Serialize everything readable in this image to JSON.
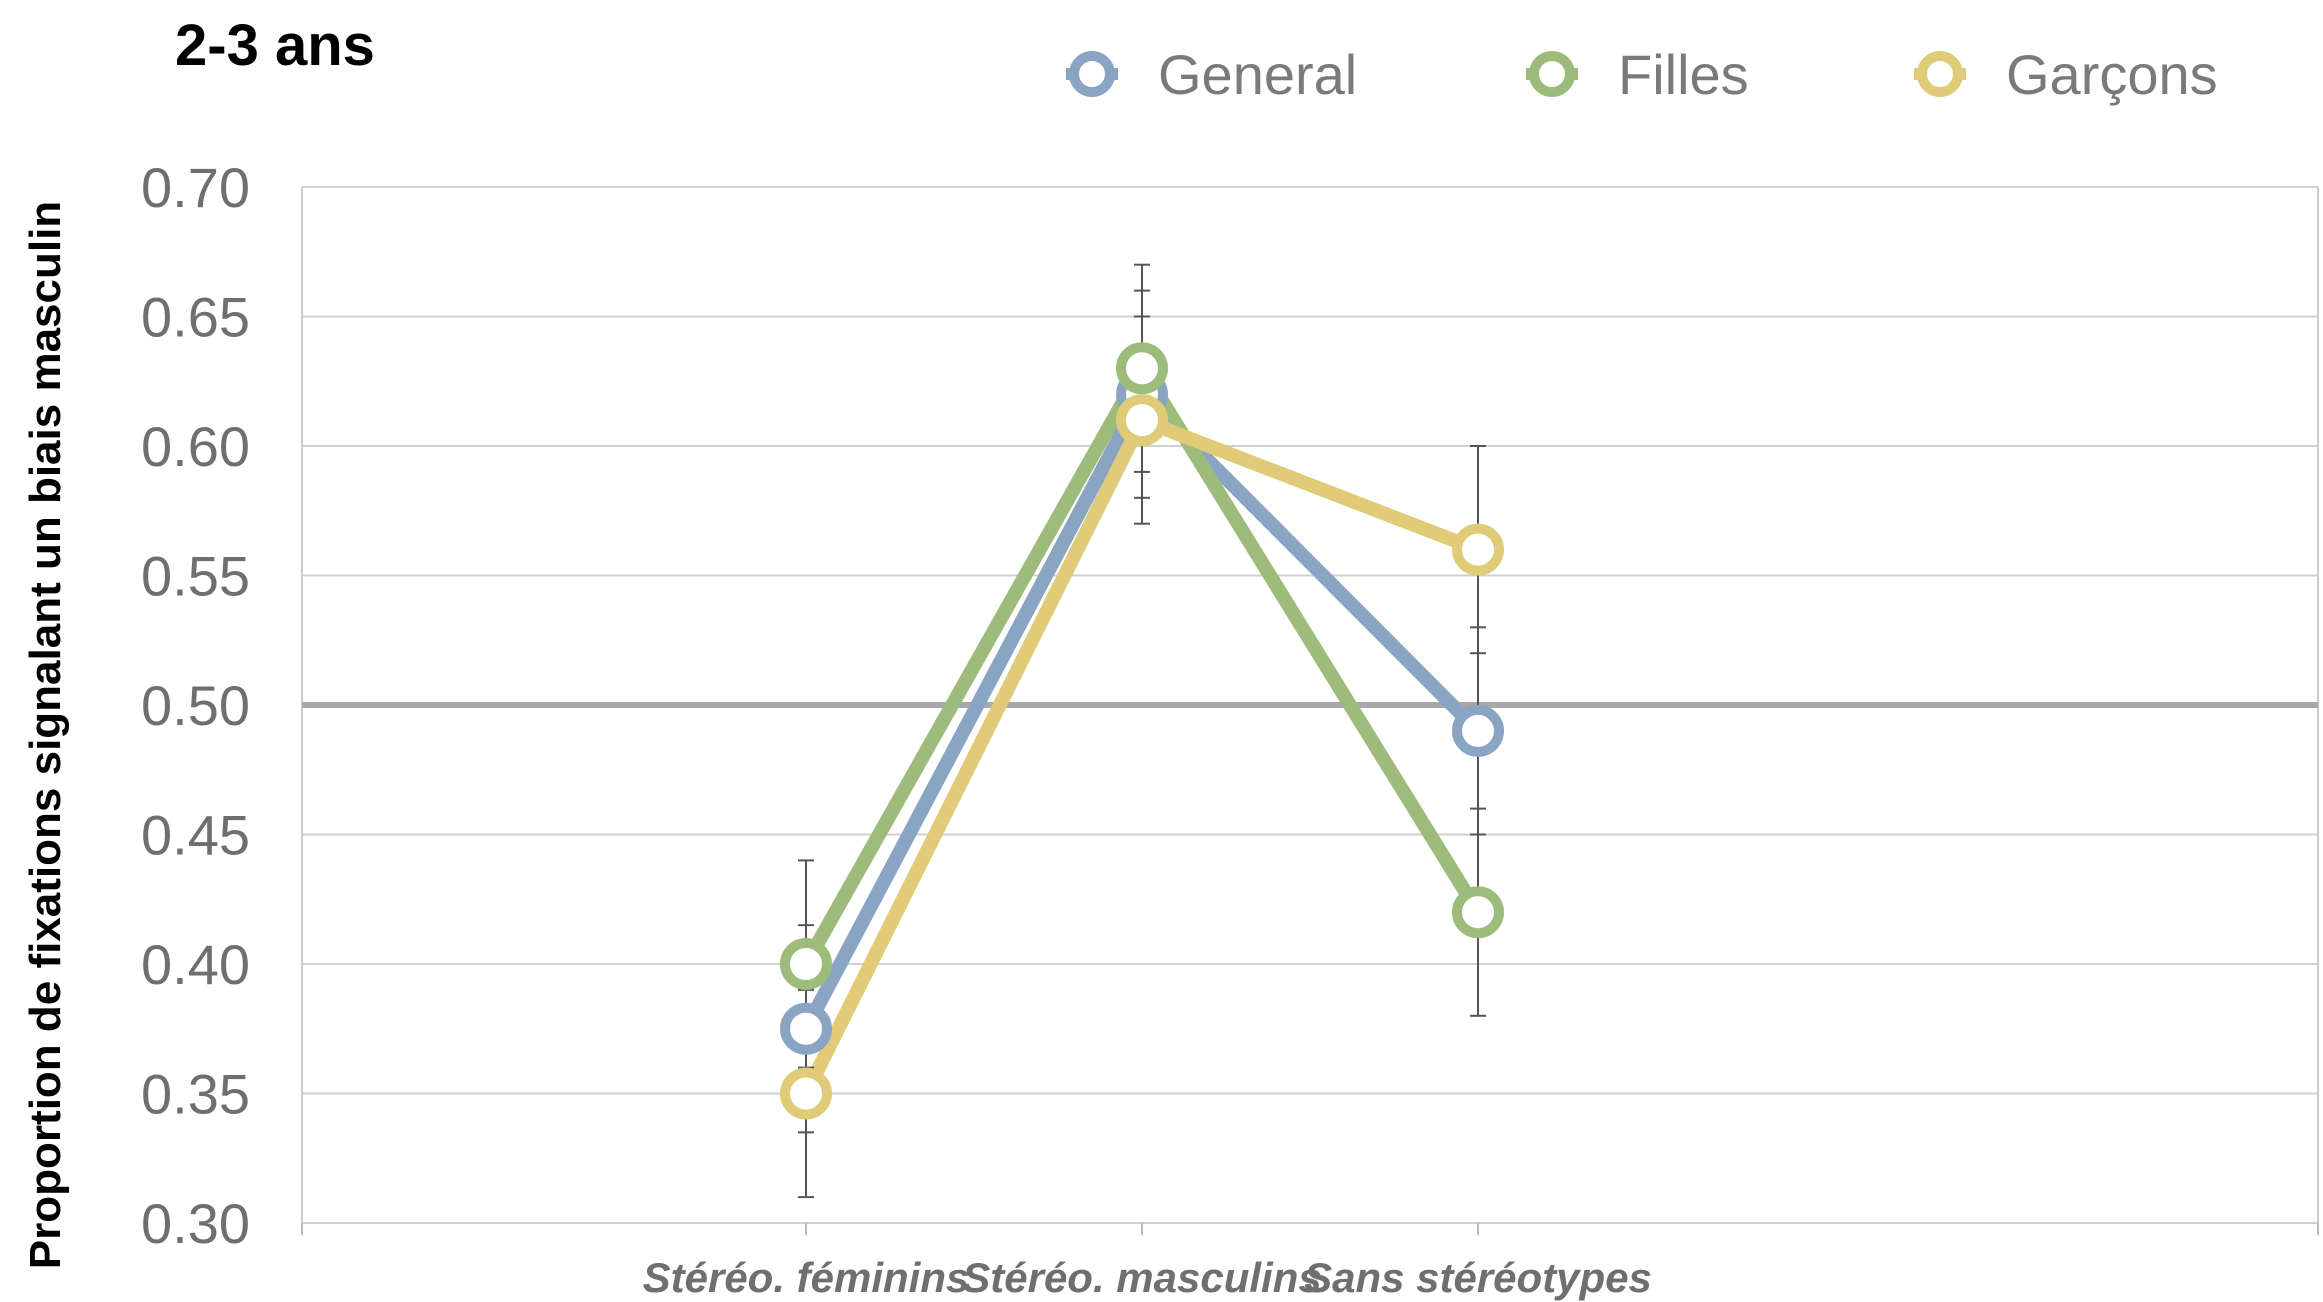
{
  "chart_data": {
    "type": "line",
    "title": "2-3 ans",
    "xlabel": "",
    "ylabel": "Proportion de fixations signalant un biais masculin",
    "categories": [
      "Stéréo. féminins",
      "Stéréo. masculins",
      "Sans stéréotypes"
    ],
    "ylim": [
      0.3,
      0.7
    ],
    "yticks": [
      "0.70",
      "0.65",
      "0.60",
      "0.55",
      "0.50",
      "0.45",
      "0.40",
      "0.35",
      "0.30"
    ],
    "ytick_values": [
      0.7,
      0.65,
      0.6,
      0.55,
      0.5,
      0.45,
      0.4,
      0.35,
      0.3
    ],
    "reference_line": 0.5,
    "grid": true,
    "legend_position": "top-right",
    "series": [
      {
        "name": "General",
        "color": "#8aa4c4",
        "values": [
          0.375,
          0.62,
          0.49
        ],
        "error_low": [
          0.335,
          0.58,
          0.45
        ],
        "error_high": [
          0.415,
          0.66,
          0.53
        ]
      },
      {
        "name": "Filles",
        "color": "#9dbb7a",
        "values": [
          0.4,
          0.63,
          0.42
        ],
        "error_low": [
          0.36,
          0.59,
          0.38
        ],
        "error_high": [
          0.44,
          0.67,
          0.46
        ]
      },
      {
        "name": "Garçons",
        "color": "#e0cc78",
        "values": [
          0.35,
          0.61,
          0.56
        ],
        "error_low": [
          0.31,
          0.57,
          0.52
        ],
        "error_high": [
          0.39,
          0.65,
          0.6
        ]
      }
    ]
  }
}
